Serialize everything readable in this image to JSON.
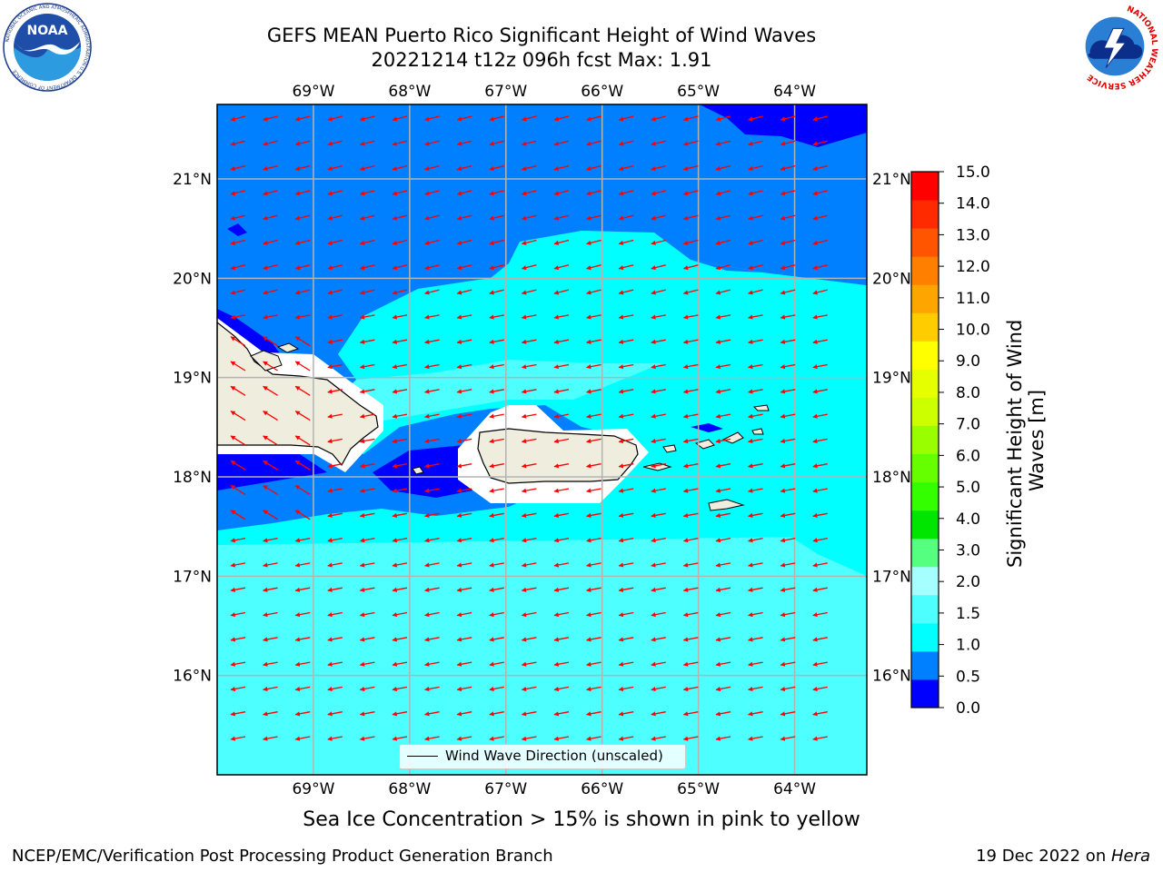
{
  "title": {
    "line1": "GEFS MEAN Puerto Rico Significant Height of Wind Waves",
    "line2": "20221214 t12z 096h fcst   Max: 1.91"
  },
  "map": {
    "lon_labels": [
      "69°W",
      "68°W",
      "67°W",
      "66°W",
      "65°W",
      "64°W"
    ],
    "lon_values": [
      -69,
      -68,
      -67,
      -66,
      -65,
      -64
    ],
    "lat_labels": [
      "21°N",
      "20°N",
      "19°N",
      "18°N",
      "17°N",
      "16°N"
    ],
    "lat_values": [
      21,
      20,
      19,
      18,
      17,
      16
    ],
    "extent": {
      "lon_min": -70.0,
      "lon_max": -63.25,
      "lat_min": 15.0,
      "lat_max": 21.75
    },
    "legend_label": "Wind Wave Direction (unscaled)",
    "arrow_color": "#ff0000",
    "land_color": "#efedde",
    "field_colors": {
      "0.0-0.5": "#0000ff",
      "0.5-1.0": "#0080ff",
      "1.0-1.5": "#00ffff",
      "1.5-2.0": "#4dffff",
      "nodata": "#ffffff"
    }
  },
  "colorbar": {
    "ticks": [
      "15.0",
      "14.0",
      "13.0",
      "12.0",
      "11.0",
      "10.0",
      "9.0",
      "8.0",
      "7.0",
      "6.0",
      "5.0",
      "4.0",
      "3.0",
      "2.0",
      "1.5",
      "1.0",
      "0.5",
      "0.0"
    ],
    "colors_bottom_to_top": [
      "#0000ff",
      "#0080ff",
      "#00ffff",
      "#4dffff",
      "#a6ffff",
      "#55ff80",
      "#00e600",
      "#33ff00",
      "#66ff00",
      "#99ff00",
      "#ccff00",
      "#e6ff00",
      "#ffff00",
      "#ffcc00",
      "#ffa500",
      "#ff7f00",
      "#ff5500",
      "#ff2a00",
      "#ff0000"
    ],
    "label_line1": "Significant Height of Wind",
    "label_line2": "Waves [m]"
  },
  "footer": {
    "note": "Sea Ice Concentration > 15% is shown in pink to yellow",
    "left": "NCEP/EMC/Verification Post Processing Product Generation Branch",
    "right_date": "19 Dec 2022 on ",
    "right_host": "Hera"
  },
  "logos": {
    "noaa_text": "NOAA",
    "noaa_ring": "NATIONAL OCEANIC AND ATMOSPHERIC ADMINISTRATION",
    "noaa_ring_bottom": "U.S. DEPARTMENT OF COMMERCE",
    "nws_ring": "NATIONAL WEATHER SERVICE"
  }
}
